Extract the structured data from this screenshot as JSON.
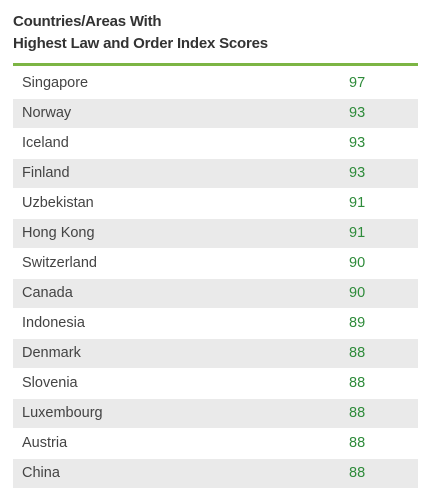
{
  "title": {
    "line1": "Countries/Areas With",
    "line2": "Highest Law and Order Index Scores"
  },
  "colors": {
    "accent_rule": "#7cb544",
    "score_text": "#2e8b3a",
    "row_shade": "#eaeaea"
  },
  "chart_data": {
    "type": "table",
    "title": "Countries/Areas With Highest Law and Order Index Scores",
    "categories": [
      "Singapore",
      "Norway",
      "Iceland",
      "Finland",
      "Uzbekistan",
      "Hong Kong",
      "Switzerland",
      "Canada",
      "Indonesia",
      "Denmark",
      "Slovenia",
      "Luxembourg",
      "Austria",
      "China"
    ],
    "values": [
      97,
      93,
      93,
      93,
      91,
      91,
      90,
      90,
      89,
      88,
      88,
      88,
      88,
      88
    ]
  }
}
